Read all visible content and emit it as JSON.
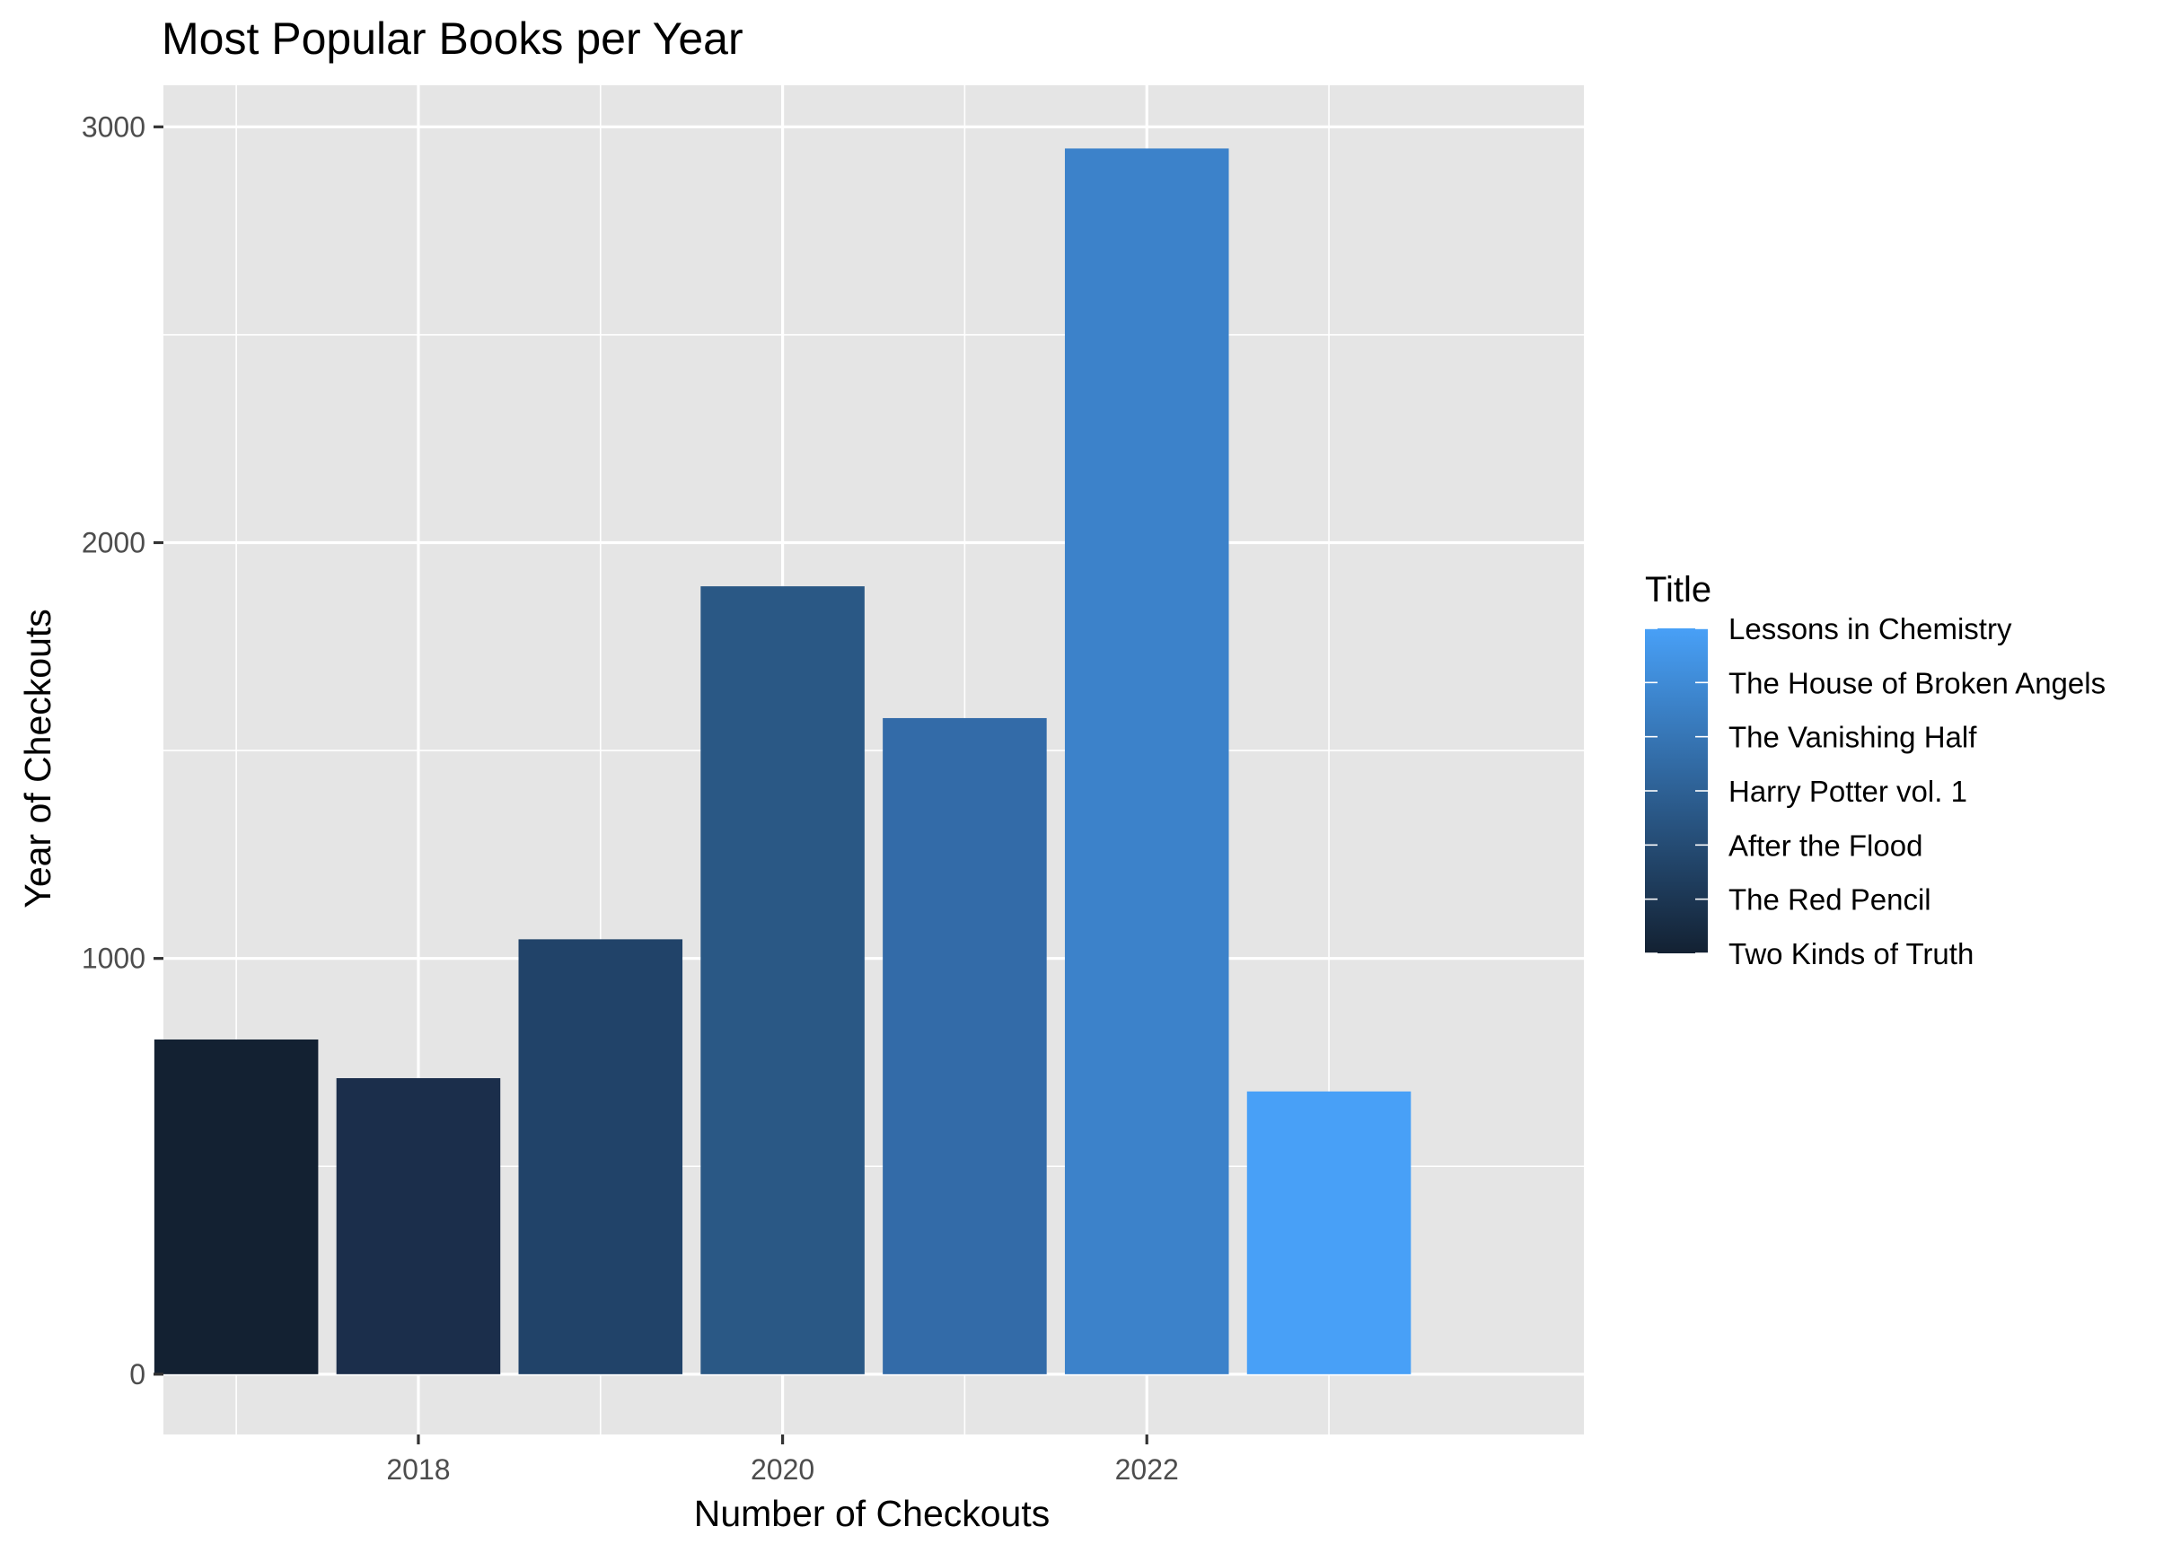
{
  "chart_data": {
    "type": "bar",
    "title": "Most Popular Books per Year",
    "xlabel": "Number of Checkouts",
    "ylabel": "Year of Checkouts",
    "x": [
      2017,
      2018,
      2019,
      2020,
      2021,
      2022,
      2023
    ],
    "values": [
      805,
      712,
      1046,
      1895,
      1578,
      2948,
      680
    ],
    "titles": [
      "Two Kinds of Truth",
      "The Red Pencil",
      "After the Flood",
      "Harry Potter vol. 1",
      "The Vanishing Half",
      "The House of Broken Angels",
      "Lessons in Chemistry"
    ],
    "bar_colors": [
      "#132132",
      "#1b2e4b",
      "#214369",
      "#2a5885",
      "#336ba8",
      "#3c82ca",
      "#48a0f7"
    ],
    "xlim": [
      2016.6,
      2024.4
    ],
    "ylim": [
      -145,
      3100
    ],
    "x_ticks": [
      2018,
      2020,
      2022
    ],
    "y_ticks": [
      0,
      1000,
      2000,
      3000
    ],
    "grid": true,
    "legend": {
      "title": "Title",
      "position": "right",
      "entries": [
        "Lessons in Chemistry",
        "The House of Broken Angels",
        "The Vanishing Half",
        "Harry Potter vol. 1",
        "After the Flood",
        "The Red Pencil",
        "Two Kinds of Truth"
      ],
      "gradient": [
        "#48a0f7",
        "#132132"
      ]
    },
    "colors": {
      "panel": "#e5e5e5",
      "grid": "#ffffff"
    }
  }
}
